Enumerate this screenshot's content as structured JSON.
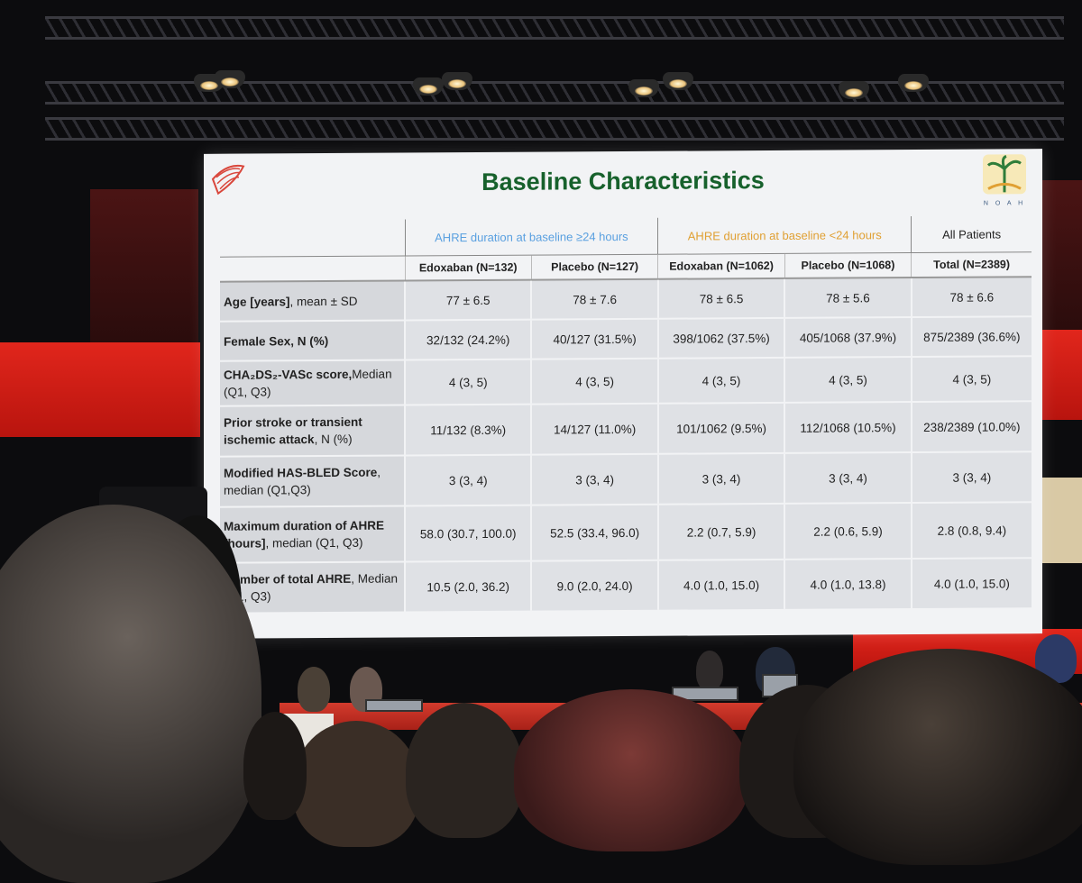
{
  "slide": {
    "title": "Baseline Characteristics",
    "logo_text": "N O A H",
    "groups": [
      {
        "label": "AHRE duration at baseline ≥24 hours",
        "color": "#5aa0e0"
      },
      {
        "label": "AHRE duration at baseline <24 hours",
        "color": "#e0a033"
      },
      {
        "label": "All Patients",
        "color": "#222222"
      }
    ],
    "columns": [
      "Edoxaban (N=132)",
      "Placebo (N=127)",
      "Edoxaban (N=1062)",
      "Placebo (N=1068)",
      "Total (N=2389)"
    ],
    "rows": [
      {
        "bold": "Age [years]",
        "rest": ", mean ± SD",
        "values": [
          "77 ± 6.5",
          "78 ± 7.6",
          "78 ± 6.5",
          "78 ± 5.6",
          "78 ± 6.6"
        ]
      },
      {
        "bold": "Female Sex, N (%)",
        "rest": "",
        "values": [
          "32/132 (24.2%)",
          "40/127 (31.5%)",
          "398/1062 (37.5%)",
          "405/1068 (37.9%)",
          "875/2389 (36.6%)"
        ]
      },
      {
        "bold": "CHA₂DS₂-VASc score,",
        "rest": "Median (Q1, Q3)",
        "values": [
          "4 (3, 5)",
          "4 (3, 5)",
          "4 (3, 5)",
          "4 (3, 5)",
          "4 (3, 5)"
        ]
      },
      {
        "bold": "Prior stroke or transient ischemic attack",
        "rest": ", N (%)",
        "values": [
          "11/132 (8.3%)",
          "14/127 (11.0%)",
          "101/1062 (9.5%)",
          "112/1068 (10.5%)",
          "238/2389 (10.0%)"
        ]
      },
      {
        "bold": "Modified HAS-BLED Score",
        "rest": ", median (Q1,Q3)",
        "values": [
          "3 (3, 4)",
          "3 (3, 4)",
          "3 (3, 4)",
          "3 (3, 4)",
          "3 (3, 4)"
        ]
      },
      {
        "bold": "Maximum duration of AHRE [hours]",
        "rest": ", median (Q1, Q3)",
        "values": [
          "58.0 (30.7, 100.0)",
          "52.5 (33.4, 96.0)",
          "2.2 (0.7, 5.9)",
          "2.2 (0.6, 5.9)",
          "2.8 (0.8, 9.4)"
        ]
      },
      {
        "bold": "Number of total AHRE",
        "rest": ", Median (Q1, Q3)",
        "values": [
          "10.5 (2.0, 36.2)",
          "9.0 (2.0, 24.0)",
          "4.0 (1.0, 15.0)",
          "4.0 (1.0, 13.8)",
          "4.0 (1.0, 15.0)"
        ]
      }
    ]
  },
  "colors": {
    "title_green": "#17612c",
    "stage_red": "#d33b2d",
    "screen_bg": "#f2f3f5"
  }
}
